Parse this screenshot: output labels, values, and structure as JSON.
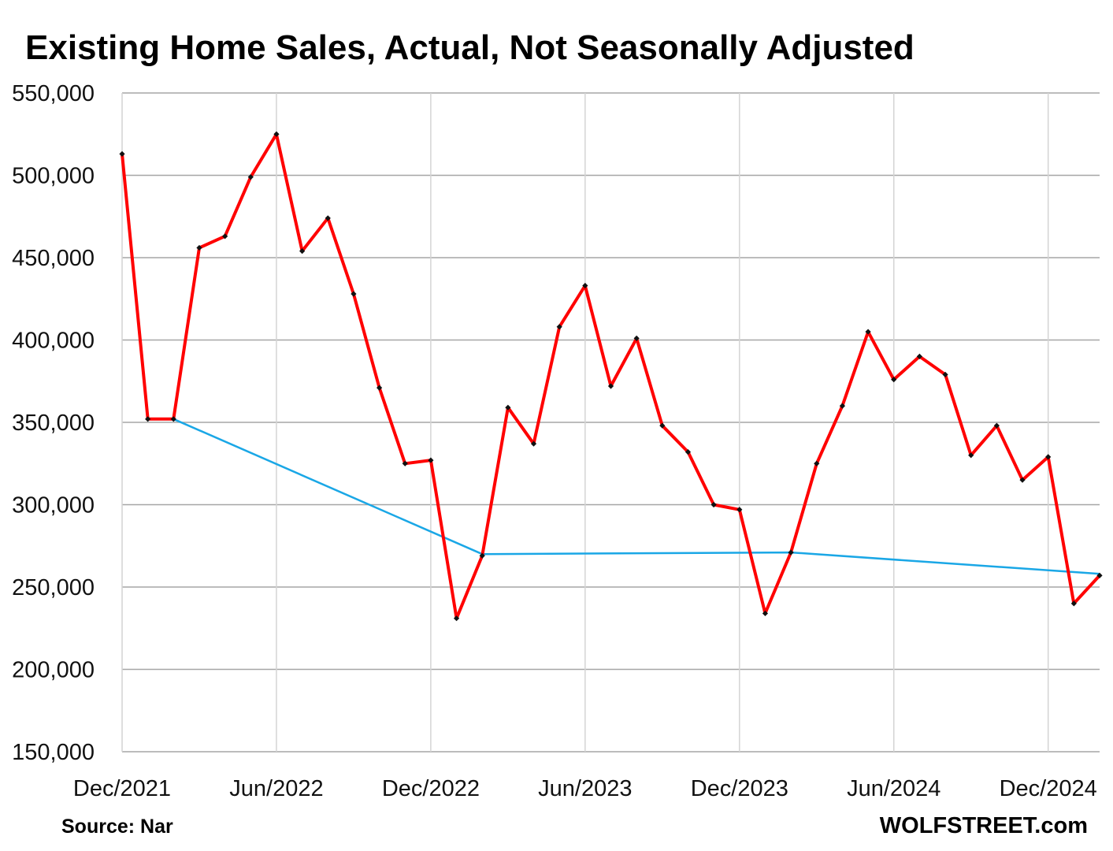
{
  "chart_data": {
    "type": "line",
    "title": "Existing Home Sales, Actual, Not Seasonally Adjusted",
    "xlabel": "",
    "ylabel": "",
    "ylim": [
      150000,
      550000
    ],
    "y_ticks": [
      "150,000",
      "200,000",
      "250,000",
      "300,000",
      "350,000",
      "400,000",
      "450,000",
      "500,000",
      "550,000"
    ],
    "y_tick_values": [
      150000,
      200000,
      250000,
      300000,
      350000,
      400000,
      450000,
      500000,
      550000
    ],
    "x_tick_labels": [
      "Dec/2021",
      "Jun/2022",
      "Dec/2022",
      "Jun/2023",
      "Dec/2023",
      "Jun/2024",
      "Dec/2024"
    ],
    "x_tick_index": [
      0,
      6,
      12,
      18,
      24,
      30,
      36
    ],
    "x": [
      "Dec/2021",
      "Jan/2022",
      "Feb/2022",
      "Mar/2022",
      "Apr/2022",
      "May/2022",
      "Jun/2022",
      "Jul/2022",
      "Aug/2022",
      "Sep/2022",
      "Oct/2022",
      "Nov/2022",
      "Dec/2022",
      "Jan/2023",
      "Feb/2023",
      "Mar/2023",
      "Apr/2023",
      "May/2023",
      "Jun/2023",
      "Jul/2023",
      "Aug/2023",
      "Sep/2023",
      "Oct/2023",
      "Nov/2023",
      "Dec/2023",
      "Jan/2024",
      "Feb/2024",
      "Mar/2024",
      "Apr/2024",
      "May/2024",
      "Jun/2024",
      "Jul/2024",
      "Aug/2024",
      "Sep/2024",
      "Oct/2024",
      "Nov/2024",
      "Dec/2024",
      "Jan/2025",
      "Feb/2025"
    ],
    "series": [
      {
        "name": "Existing home sales",
        "color": "#ff0000",
        "marker_color": "#111111",
        "values": [
          513000,
          352000,
          352000,
          456000,
          463000,
          499000,
          525000,
          454000,
          474000,
          428000,
          371000,
          325000,
          327000,
          231000,
          269000,
          359000,
          337000,
          408000,
          433000,
          372000,
          401000,
          348000,
          332000,
          300000,
          297000,
          234000,
          271000,
          325000,
          360000,
          405000,
          376000,
          390000,
          379000,
          330000,
          348000,
          315000,
          329000,
          240000,
          257000
        ]
      },
      {
        "name": "Trend line",
        "color": "#1aa7e6",
        "segments": [
          [
            [
              2,
              352000
            ],
            [
              14,
              270000
            ]
          ],
          [
            [
              14,
              270000
            ],
            [
              26,
              271000
            ],
            [
              38,
              258000
            ]
          ]
        ]
      }
    ],
    "grid": true
  },
  "footer": {
    "source": "Source: Nar",
    "brand": "WOLFSTREET.com"
  }
}
